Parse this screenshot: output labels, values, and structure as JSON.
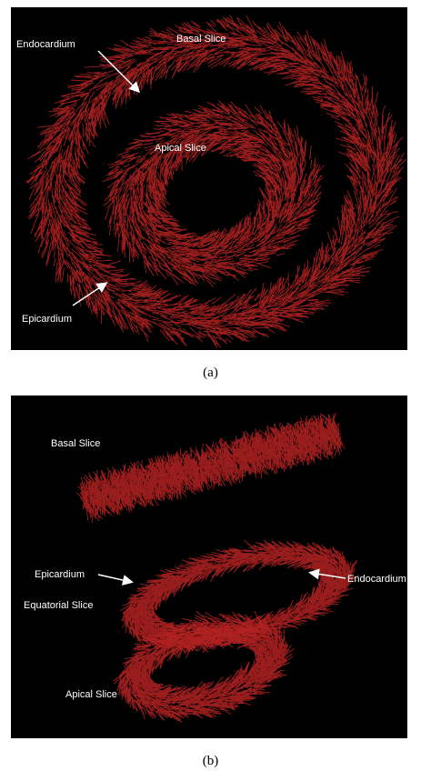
{
  "panel_a": {
    "caption": "(a)",
    "labels": {
      "endocardium": "Endocardium",
      "basal_slice": "Basal Slice",
      "apical_slice": "Apical Slice",
      "epicardium": "Epicardium"
    }
  },
  "panel_b": {
    "caption": "(b)",
    "labels": {
      "basal_slice": "Basal Slice",
      "epicardium": "Epicardium",
      "endocardium": "Endocardium",
      "equatorial_slice": "Equatorial Slice",
      "apical_slice": "Apical Slice"
    }
  },
  "colors": {
    "background": "#000000",
    "fiber": "#b52222",
    "label": "#ffffff"
  }
}
